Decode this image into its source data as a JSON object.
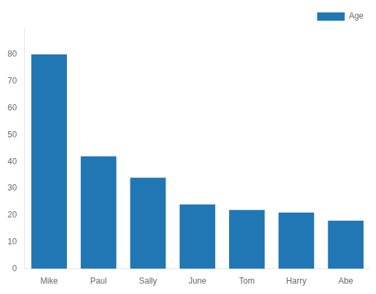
{
  "chart_data": {
    "type": "bar",
    "categories": [
      "Mike",
      "Paul",
      "Sally",
      "June",
      "Tom",
      "Harry",
      "Abe"
    ],
    "series": [
      {
        "name": "Age",
        "color": "#2077b4",
        "values": [
          80,
          42,
          34,
          24,
          22,
          21,
          18
        ]
      }
    ],
    "ylim": [
      0,
      90
    ],
    "yticks": [
      0,
      10,
      20,
      30,
      40,
      50,
      60,
      70,
      80
    ],
    "grid": false,
    "legend": "upper right"
  }
}
